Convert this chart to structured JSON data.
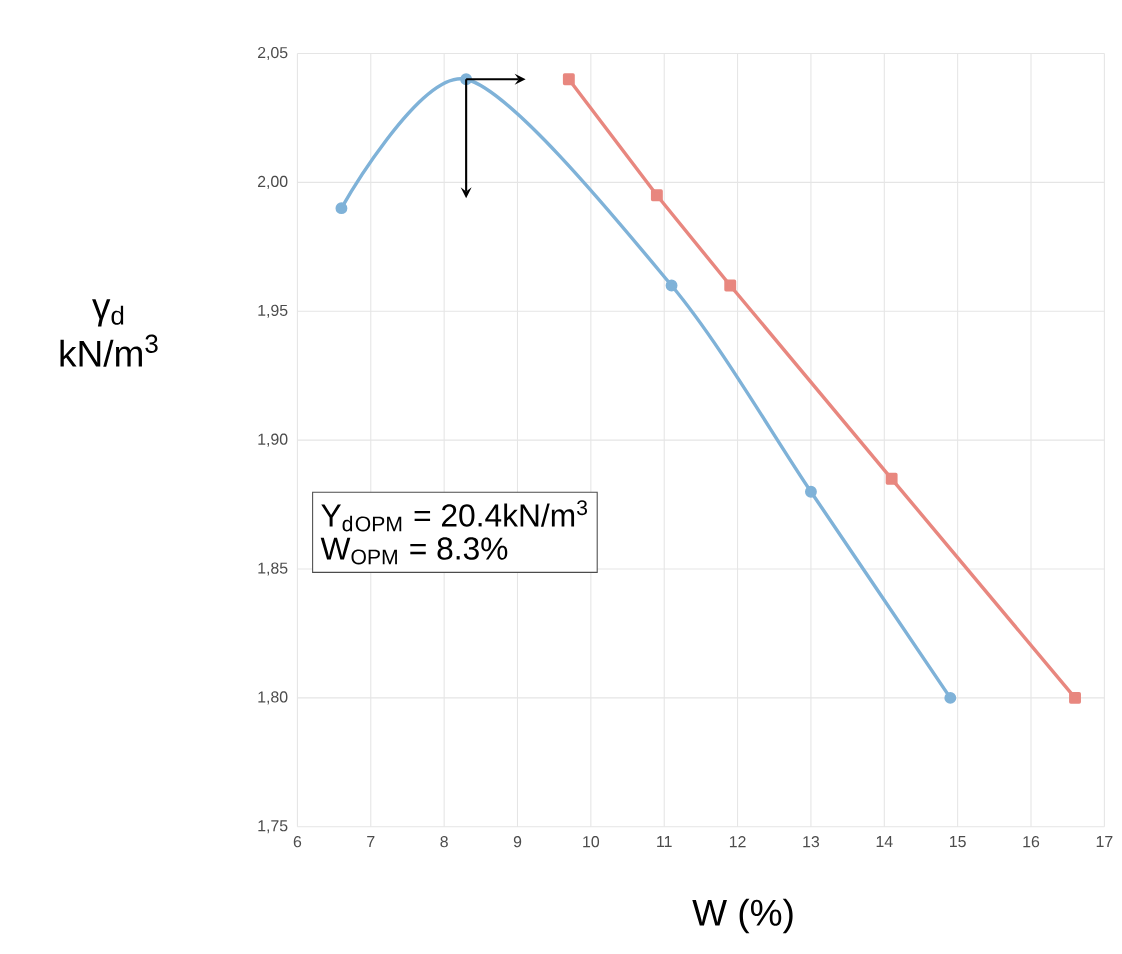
{
  "chart_data": {
    "type": "line",
    "xlabel": "W (%)",
    "ylabel": "γ$_{d}$ kN/m$^{3}$",
    "xlim": [
      6,
      17
    ],
    "ylim": [
      1.75,
      2.05
    ],
    "xticks": [
      6,
      7,
      8,
      9,
      10,
      11,
      12,
      13,
      14,
      15,
      16,
      17
    ],
    "yticks": [
      {
        "value": 1.75,
        "label": "1,75"
      },
      {
        "value": 1.8,
        "label": "1,80"
      },
      {
        "value": 1.85,
        "label": "1,85"
      },
      {
        "value": 1.9,
        "label": "1,90"
      },
      {
        "value": 1.95,
        "label": "1,95"
      },
      {
        "value": 2.0,
        "label": "2,00"
      },
      {
        "value": 2.05,
        "label": "2,05"
      }
    ],
    "grid": true,
    "series": [
      {
        "color": "#7fb2d8",
        "marker": "circle",
        "x": [
          6.6,
          8.3,
          11.1,
          13.0,
          14.9
        ],
        "values": [
          1.99,
          2.04,
          1.96,
          1.88,
          1.8
        ]
      },
      {
        "color": "#e8877f",
        "marker": "square",
        "x": [
          9.7,
          10.9,
          11.9,
          14.1,
          16.6
        ],
        "values": [
          2.04,
          1.995,
          1.96,
          1.885,
          1.8
        ]
      }
    ],
    "annotations": [
      "Y$_{d}$$_{OPM}$ = 20.4kN/m$^{3}$",
      "W$_{OPM}$ = 8.3%"
    ]
  }
}
